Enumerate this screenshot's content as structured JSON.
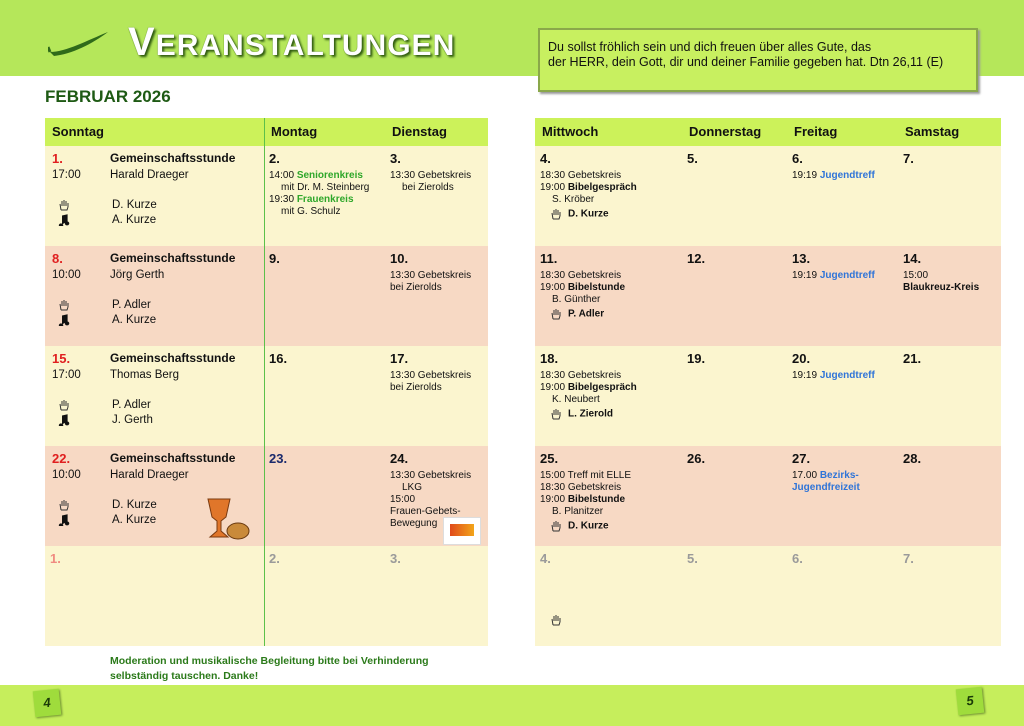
{
  "header": {
    "title": "VERANSTALTUNGEN",
    "month": "FEBRUAR 2026",
    "verse": [
      "Du sollst fröhlich sein und dich freuen über alles Gute, das",
      "der HERR, dein Gott, dir und deiner Familie gegeben hat. Dtn 26,11 (E)"
    ]
  },
  "left_table": {
    "columns": [
      "Sonntag",
      "Montag",
      "Dienstag"
    ],
    "rows": [
      [
        {
          "date": "1.",
          "time": "17:00",
          "title": "Gemeinschaftsstunde",
          "speaker": "Harald Draeger",
          "moderator": "D. Kurze",
          "music": "A. Kurze"
        },
        {
          "date": "2.",
          "entries": [
            {
              "time": "14:00",
              "text": "Seniorenkreis",
              "emphasis": "green"
            },
            {
              "text": "mit Dr. M. Steinberg",
              "indent": true
            },
            {
              "time": "19:30",
              "text": "Frauenkreis",
              "emphasis": "green"
            },
            {
              "text": "mit G. Schulz",
              "indent": true
            }
          ]
        },
        {
          "date": "3.",
          "entries": [
            {
              "text": "13:30 Gebetskreis"
            },
            {
              "text": "bei Zierolds",
              "indent": true
            }
          ]
        }
      ],
      [
        {
          "date": "8.",
          "time": "10:00",
          "title": "Gemeinschaftsstunde",
          "speaker": "Jörg Gerth",
          "moderator": "P. Adler",
          "music": "A. Kurze"
        },
        {
          "date": "9."
        },
        {
          "date": "10.",
          "entries": [
            {
              "text": "13:30 Gebetskreis"
            },
            {
              "text": "bei Zierolds"
            }
          ]
        }
      ],
      [
        {
          "date": "15.",
          "time": "17:00",
          "title": "Gemeinschaftsstunde",
          "speaker": "Thomas Berg",
          "moderator": "P. Adler",
          "music": "J. Gerth"
        },
        {
          "date": "16."
        },
        {
          "date": "17.",
          "entries": [
            {
              "text": "13:30 Gebetskreis"
            },
            {
              "text": "bei Zierolds"
            }
          ]
        }
      ],
      [
        {
          "date": "22.",
          "time": "10:00",
          "title": "Gemeinschaftsstunde",
          "speaker": "Harald Draeger",
          "moderator": "D. Kurze",
          "music": "A. Kurze"
        },
        {
          "date": "23.",
          "date_color": "#1a2a6c"
        },
        {
          "date": "24.",
          "entries": [
            {
              "text": "13:30 Gebetskreis"
            },
            {
              "text": "LKG",
              "indent": true
            },
            {
              "text": "15:00"
            },
            {
              "text": "Frauen-Gebets-"
            },
            {
              "text": "Bewegung"
            }
          ]
        }
      ],
      [
        {
          "date": "1.",
          "date_color": "#f08a80"
        },
        {
          "date": "2.",
          "date_color": "#9a9a9a"
        },
        {
          "date": "3.",
          "date_color": "#9a9a9a"
        }
      ]
    ]
  },
  "right_table": {
    "columns": [
      "Mittwoch",
      "Donnerstag",
      "Freitag",
      "Samstag"
    ],
    "rows": [
      [
        {
          "date": "4.",
          "entries": [
            {
              "time": "18:30",
              "text": "Gebetskreis"
            },
            {
              "time": "19:00",
              "text": "Bibelgespräch",
              "emphasis": "bold"
            },
            {
              "text": "S. Kröber",
              "indent": true
            }
          ],
          "moderator": "D. Kurze"
        },
        {
          "date": "5."
        },
        {
          "date": "6.",
          "entries": [
            {
              "time": "19:19",
              "text": "Jugendtreff",
              "emphasis": "blue"
            }
          ]
        },
        {
          "date": "7."
        }
      ],
      [
        {
          "date": "11.",
          "entries": [
            {
              "time": "18:30",
              "text": "Gebetskreis"
            },
            {
              "time": "19:00",
              "text": "Bibelstunde",
              "emphasis": "bold"
            },
            {
              "text": "B. Günther",
              "indent": true
            }
          ],
          "moderator": "P. Adler"
        },
        {
          "date": "12."
        },
        {
          "date": "13.",
          "entries": [
            {
              "time": "19:19",
              "text": "Jugendtreff",
              "emphasis": "blue"
            }
          ]
        },
        {
          "date": "14.",
          "entries": [
            {
              "text": "15:00"
            },
            {
              "text": "Blaukreuz-Kreis",
              "emphasis": "bold"
            }
          ]
        }
      ],
      [
        {
          "date": "18.",
          "entries": [
            {
              "time": "18:30",
              "text": "Gebetskreis"
            },
            {
              "time": "19:00",
              "text": "Bibelgespräch",
              "emphasis": "bold"
            },
            {
              "text": "K. Neubert",
              "indent": true
            }
          ],
          "moderator": "L. Zierold"
        },
        {
          "date": "19."
        },
        {
          "date": "20.",
          "entries": [
            {
              "time": "19:19",
              "text": "Jugendtreff",
              "emphasis": "blue"
            }
          ]
        },
        {
          "date": "21."
        }
      ],
      [
        {
          "date": "25.",
          "entries": [
            {
              "time": "15:00",
              "text": "Treff mit ELLE"
            },
            {
              "time": "18:30",
              "text": "Gebetskreis"
            },
            {
              "time": "19:00",
              "text": "Bibelstunde",
              "emphasis": "bold"
            },
            {
              "text": "B. Planitzer",
              "indent": true
            }
          ],
          "moderator": "D. Kurze"
        },
        {
          "date": "26."
        },
        {
          "date": "27.",
          "entries": [
            {
              "time": "17.00",
              "text": "Bezirks-Jugendfreizeit",
              "emphasis": "blue"
            }
          ]
        },
        {
          "date": "28."
        }
      ],
      [
        {
          "date": "4.",
          "date_color": "#9a9a9a",
          "hand": true
        },
        {
          "date": "5.",
          "date_color": "#9a9a9a"
        },
        {
          "date": "6.",
          "date_color": "#9a9a9a"
        },
        {
          "date": "7.",
          "date_color": "#9a9a9a"
        }
      ]
    ]
  },
  "footer": {
    "note": [
      "Moderation und musikalische Begleitung bitte bei Verhinderung",
      "selbständig tauschen. Danke!"
    ],
    "page_left": "4",
    "page_right": "5"
  }
}
